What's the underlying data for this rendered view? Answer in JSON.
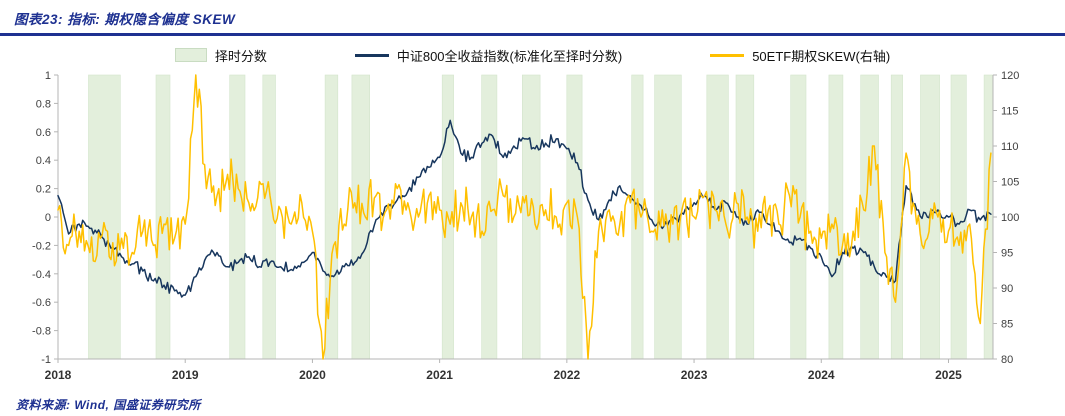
{
  "colors": {
    "accent_navy": "#1e3191",
    "index_navy": "#17365d",
    "skew_gold": "#ffc000",
    "band_green": "#e3efdc"
  },
  "header": {
    "title": "图表23:  指标:  期权隐含偏度 SKEW"
  },
  "footer": {
    "source": "资料来源:  Wind, 国盛证券研究所"
  },
  "chart_data": {
    "type": "line",
    "title": "期权隐含偏度 SKEW",
    "x_ticks": [
      2018,
      2019,
      2020,
      2021,
      2022,
      2023,
      2024,
      2025
    ],
    "x_range": [
      2018,
      2025.35
    ],
    "left_axis": {
      "range": [
        -1,
        1
      ],
      "ticks": [
        1,
        0.8,
        0.6,
        0.4,
        0.2,
        0,
        -0.2,
        -0.4,
        -0.6,
        -0.8,
        -1
      ]
    },
    "right_axis": {
      "range": [
        80,
        120
      ],
      "ticks": [
        120,
        115,
        110,
        105,
        100,
        95,
        90,
        85,
        80
      ]
    },
    "legend_position": "top",
    "grid": false,
    "series": [
      {
        "name": "择时分数",
        "type": "band",
        "color": "#e3efdc",
        "border": "#d3e4cb",
        "intervals": [
          [
            2018.24,
            2018.49
          ],
          [
            2018.77,
            2018.88
          ],
          [
            2019.35,
            2019.47
          ],
          [
            2019.61,
            2019.71
          ],
          [
            2020.1,
            2020.2
          ],
          [
            2020.31,
            2020.45
          ],
          [
            2021.02,
            2021.11
          ],
          [
            2021.33,
            2021.45
          ],
          [
            2021.65,
            2021.79
          ],
          [
            2022.0,
            2022.12
          ],
          [
            2022.51,
            2022.6
          ],
          [
            2022.69,
            2022.9
          ],
          [
            2023.1,
            2023.27
          ],
          [
            2023.33,
            2023.47
          ],
          [
            2023.76,
            2023.88
          ],
          [
            2024.06,
            2024.17
          ],
          [
            2024.31,
            2024.45
          ],
          [
            2024.55,
            2024.64
          ],
          [
            2024.78,
            2024.93
          ],
          [
            2025.02,
            2025.14
          ],
          [
            2025.28,
            2025.35
          ]
        ]
      },
      {
        "name": "中证800全收益指数(标准化至择时分数)",
        "type": "line",
        "axis": "left",
        "color": "#17365d",
        "start_year": 2018,
        "step_months": 1,
        "jitter": 0.03,
        "values": [
          0.15,
          -0.12,
          -0.05,
          -0.08,
          -0.12,
          -0.22,
          -0.28,
          -0.33,
          -0.38,
          -0.45,
          -0.48,
          -0.52,
          -0.55,
          -0.42,
          -0.28,
          -0.25,
          -0.35,
          -0.32,
          -0.28,
          -0.35,
          -0.32,
          -0.35,
          -0.37,
          -0.32,
          -0.25,
          -0.38,
          -0.42,
          -0.35,
          -0.32,
          -0.22,
          -0.02,
          0.08,
          0.12,
          0.18,
          0.28,
          0.35,
          0.42,
          0.68,
          0.45,
          0.42,
          0.52,
          0.57,
          0.42,
          0.5,
          0.55,
          0.48,
          0.52,
          0.55,
          0.48,
          0.38,
          0.12,
          -0.02,
          0.12,
          0.22,
          0.15,
          0.08,
          -0.02,
          -0.08,
          0,
          0.02,
          0.1,
          0.15,
          0.05,
          0.1,
          0,
          -0.05,
          0.05,
          -0.05,
          -0.1,
          -0.18,
          -0.15,
          -0.22,
          -0.28,
          -0.42,
          -0.25,
          -0.22,
          -0.25,
          -0.35,
          -0.4,
          -0.45,
          0.22,
          0.05,
          0,
          0.05,
          0,
          -0.05,
          0.05,
          -0.02,
          0.02
        ]
      },
      {
        "name": "50ETF期权SKEW(右轴)",
        "type": "line",
        "axis": "right",
        "color": "#ffc000",
        "start_year": 2018,
        "step_months": 1,
        "jitter": 2.6,
        "values": [
          101,
          96,
          98,
          95,
          97,
          94,
          97,
          95,
          98,
          96,
          99,
          97,
          99,
          120,
          104,
          103,
          106,
          104,
          102,
          105,
          103,
          101,
          99,
          102,
          98,
          80,
          96,
          99,
          102,
          100,
          103,
          101,
          104,
          102,
          100,
          103,
          101,
          99,
          102,
          100,
          98,
          101,
          103,
          100,
          102,
          99,
          101,
          100,
          102,
          100,
          80,
          98,
          101,
          99,
          102,
          100,
          98,
          101,
          99,
          102,
          100,
          103,
          101,
          99,
          102,
          100,
          98,
          101,
          99,
          103,
          100,
          98,
          97,
          99,
          96,
          98,
          101,
          110,
          95,
          88,
          109,
          99,
          97,
          100,
          98,
          96,
          99,
          85,
          109
        ]
      }
    ]
  }
}
